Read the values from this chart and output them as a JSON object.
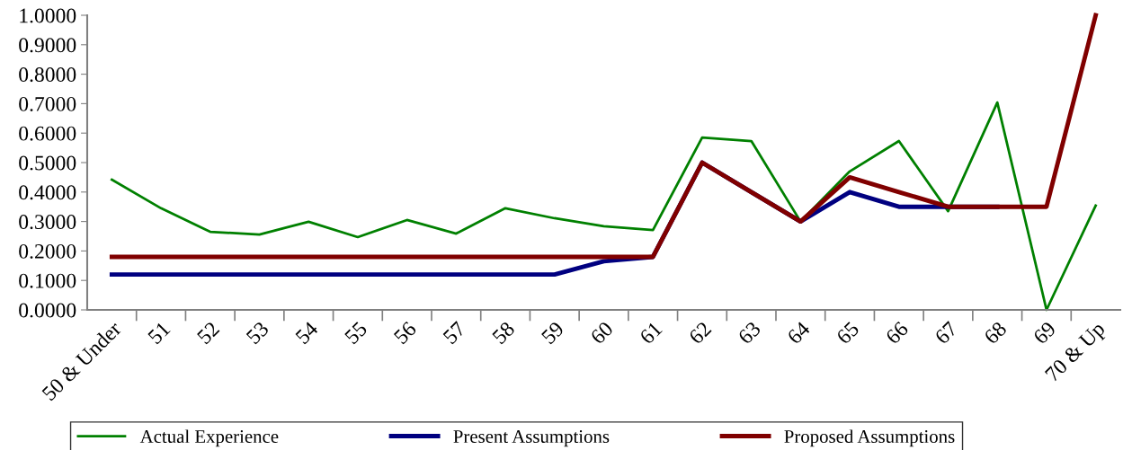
{
  "chart_data": {
    "type": "line",
    "categories": [
      "50 & Under",
      "51",
      "52",
      "53",
      "54",
      "55",
      "56",
      "57",
      "58",
      "59",
      "60",
      "61",
      "62",
      "63",
      "64",
      "65",
      "66",
      "67",
      "68",
      "69",
      "70 & Up"
    ],
    "series": [
      {
        "name": "Actual Experience",
        "color": "#008000",
        "values": [
          0.442,
          0.345,
          0.265,
          0.256,
          0.299,
          0.247,
          0.305,
          0.259,
          0.345,
          0.311,
          0.284,
          0.271,
          0.585,
          0.573,
          0.3,
          0.47,
          0.573,
          0.335,
          0.704,
          0.0,
          0.354
        ]
      },
      {
        "name": "Present Assumptions",
        "color": "#000080",
        "values": [
          0.12,
          0.12,
          0.12,
          0.12,
          0.12,
          0.12,
          0.12,
          0.12,
          0.12,
          0.12,
          0.165,
          0.18,
          0.5,
          0.4,
          0.3,
          0.4,
          0.35,
          0.35,
          0.35,
          null,
          null
        ]
      },
      {
        "name": "Proposed Assumptions",
        "color": "#800000",
        "values": [
          0.18,
          0.18,
          0.18,
          0.18,
          0.18,
          0.18,
          0.18,
          0.18,
          0.18,
          0.18,
          0.18,
          0.18,
          0.5,
          0.4,
          0.3,
          0.45,
          0.4,
          0.35,
          0.35,
          0.35,
          1.0
        ]
      }
    ],
    "ylim": [
      0,
      1
    ],
    "yticks": [
      {
        "value": 0,
        "label": "0.0000"
      },
      {
        "value": 0.1,
        "label": "0.1000"
      },
      {
        "value": 0.2,
        "label": "0.2000"
      },
      {
        "value": 0.3,
        "label": "0.3000"
      },
      {
        "value": 0.4,
        "label": "0.4000"
      },
      {
        "value": 0.5,
        "label": "0.5000"
      },
      {
        "value": 0.6,
        "label": "0.6000"
      },
      {
        "value": 0.7,
        "label": "0.7000"
      },
      {
        "value": 0.8,
        "label": "0.8000"
      },
      {
        "value": 0.9,
        "label": "0.9000"
      },
      {
        "value": 1,
        "label": "1.0000"
      }
    ],
    "grid": false,
    "legend": "bottom",
    "marker": "none",
    "line_style": "solid"
  }
}
